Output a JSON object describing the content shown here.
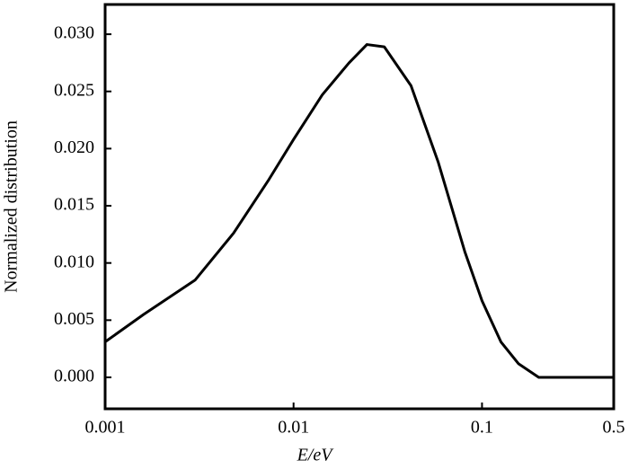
{
  "chart_data": {
    "type": "line",
    "xlabel": "E/eV",
    "ylabel": "Normalized distribution",
    "x": [
      0.001,
      0.0016,
      0.003,
      0.0048,
      0.0074,
      0.01,
      0.0142,
      0.0197,
      0.0245,
      0.0303,
      0.042,
      0.0586,
      0.081,
      0.1,
      0.126,
      0.156,
      0.2,
      0.5
    ],
    "series": [
      {
        "color": "#000000",
        "values": [
          0.0031,
          0.0055,
          0.0085,
          0.0126,
          0.0173,
          0.0208,
          0.0247,
          0.0275,
          0.0291,
          0.0289,
          0.0255,
          0.0188,
          0.011,
          0.0067,
          0.0031,
          0.0012,
          0.0,
          0.0
        ]
      }
    ],
    "xscale": "log",
    "xlim": [
      0.001,
      0.5
    ],
    "xticks": [
      0.001,
      0.01,
      0.1,
      0.5
    ],
    "ylim": [
      -0.00275,
      0.0326
    ],
    "yticks": [
      {
        "value": 0,
        "label": "0.000"
      },
      {
        "value": 0.005,
        "label": "0.005"
      },
      {
        "value": 0.01,
        "label": "0.010"
      },
      {
        "value": 0.015,
        "label": "0.015"
      },
      {
        "value": 0.02,
        "label": "0.020"
      },
      {
        "value": 0.025,
        "label": "0.025"
      },
      {
        "value": 0.03,
        "label": "0.030"
      }
    ]
  }
}
